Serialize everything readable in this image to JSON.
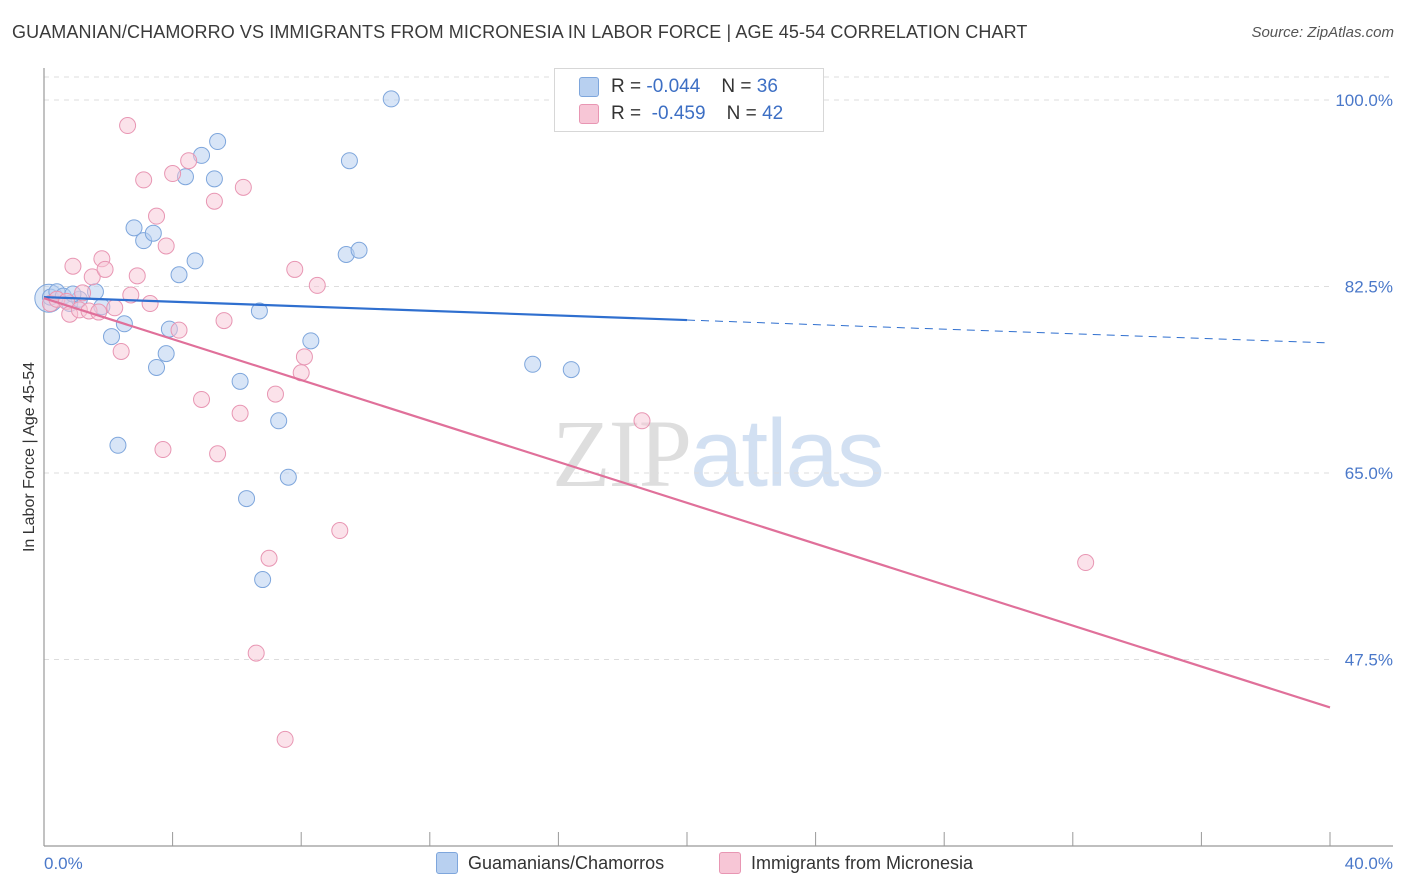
{
  "title": "GUAMANIAN/CHAMORRO VS IMMIGRANTS FROM MICRONESIA IN LABOR FORCE | AGE 45-54 CORRELATION CHART",
  "source": "Source: ZipAtlas.com",
  "watermark": {
    "zip": "ZIP",
    "atlas": "atlas"
  },
  "legend": {
    "rows": [
      {
        "r_label": "R =",
        "r_value": "-0.044",
        "n_label": "N =",
        "n_value": "36"
      },
      {
        "r_label": "R =",
        "r_value": "-0.459",
        "n_label": "N =",
        "n_value": "42"
      }
    ]
  },
  "bottom_legend": {
    "series1": "Guamanians/Chamorros",
    "series2": "Immigrants from Micronesia"
  },
  "colors": {
    "blue_fill": "#b8d0f0",
    "blue_stroke": "#7ea6dc",
    "blue_line": "#2f6fcf",
    "pink_fill": "#f7c6d6",
    "pink_stroke": "#e896b3",
    "pink_line": "#e0709a",
    "axis_text": "#4a78c9",
    "grid": "#dddddd"
  },
  "chart_data": {
    "type": "scatter",
    "title": "GUAMANIAN/CHAMORRO VS IMMIGRANTS FROM MICRONESIA IN LABOR FORCE | AGE 45-54 CORRELATION CHART",
    "xlabel": "",
    "ylabel": "In Labor Force | Age 45-54",
    "xlim": [
      0,
      40
    ],
    "ylim": [
      30,
      103
    ],
    "x_tick_labels": [
      "0.0%",
      "40.0%"
    ],
    "y_ticks": [
      47.5,
      65.0,
      82.5,
      100.0
    ],
    "y_tick_labels": [
      "47.5%",
      "65.0%",
      "82.5%",
      "100.0%"
    ],
    "grid": true,
    "series": [
      {
        "name": "Guamanians/Chamorros",
        "r": -0.044,
        "n": 36,
        "trend": {
          "x0": 0,
          "y0": 81.5,
          "x1": 40,
          "y1": 77.2,
          "solid_until_x": 20
        },
        "points": [
          [
            0.2,
            81.5
          ],
          [
            0.4,
            82.0
          ],
          [
            0.6,
            81.6
          ],
          [
            0.8,
            80.9
          ],
          [
            1.1,
            81.3
          ],
          [
            1.6,
            82.0
          ],
          [
            1.8,
            80.6
          ],
          [
            2.5,
            79.0
          ],
          [
            2.1,
            77.8
          ],
          [
            2.3,
            67.6
          ],
          [
            2.8,
            88.0
          ],
          [
            3.1,
            86.8
          ],
          [
            3.4,
            87.5
          ],
          [
            3.5,
            74.9
          ],
          [
            3.8,
            76.2
          ],
          [
            3.9,
            78.5
          ],
          [
            4.2,
            83.6
          ],
          [
            4.4,
            92.8
          ],
          [
            4.7,
            84.9
          ],
          [
            4.9,
            94.8
          ],
          [
            5.3,
            92.6
          ],
          [
            5.4,
            96.1
          ],
          [
            6.1,
            73.6
          ],
          [
            6.3,
            62.6
          ],
          [
            6.7,
            80.2
          ],
          [
            6.8,
            55.0
          ],
          [
            7.3,
            69.9
          ],
          [
            7.6,
            64.6
          ],
          [
            8.3,
            77.4
          ],
          [
            9.4,
            85.5
          ],
          [
            9.5,
            94.3
          ],
          [
            9.8,
            85.9
          ],
          [
            10.8,
            100.1
          ],
          [
            15.2,
            75.2
          ],
          [
            16.4,
            74.7
          ],
          [
            0.9,
            81.8
          ]
        ]
      },
      {
        "name": "Immigrants from Micronesia",
        "r": -0.459,
        "n": 42,
        "trend": {
          "x0": 0,
          "y0": 81.4,
          "x1": 40,
          "y1": 43.0
        },
        "points": [
          [
            0.2,
            80.9
          ],
          [
            0.4,
            81.3
          ],
          [
            0.7,
            81.1
          ],
          [
            0.8,
            79.9
          ],
          [
            0.9,
            84.4
          ],
          [
            1.1,
            80.3
          ],
          [
            1.2,
            81.9
          ],
          [
            1.4,
            80.2
          ],
          [
            1.5,
            83.4
          ],
          [
            1.7,
            80.1
          ],
          [
            1.8,
            85.1
          ],
          [
            1.9,
            84.1
          ],
          [
            2.2,
            80.5
          ],
          [
            2.4,
            76.4
          ],
          [
            2.6,
            97.6
          ],
          [
            2.7,
            81.7
          ],
          [
            2.9,
            83.5
          ],
          [
            3.1,
            92.5
          ],
          [
            3.3,
            80.9
          ],
          [
            3.5,
            89.1
          ],
          [
            3.7,
            67.2
          ],
          [
            3.8,
            86.3
          ],
          [
            4.0,
            93.1
          ],
          [
            4.2,
            78.4
          ],
          [
            4.5,
            94.3
          ],
          [
            4.9,
            71.9
          ],
          [
            5.3,
            90.5
          ],
          [
            5.4,
            66.8
          ],
          [
            5.6,
            79.3
          ],
          [
            6.1,
            70.6
          ],
          [
            6.2,
            91.8
          ],
          [
            6.6,
            48.1
          ],
          [
            7.0,
            57.0
          ],
          [
            7.2,
            72.4
          ],
          [
            7.5,
            40.0
          ],
          [
            7.8,
            84.1
          ],
          [
            8.0,
            74.4
          ],
          [
            8.1,
            75.9
          ],
          [
            8.5,
            82.6
          ],
          [
            9.2,
            59.6
          ],
          [
            18.6,
            69.9
          ],
          [
            32.4,
            56.6
          ]
        ]
      }
    ]
  }
}
